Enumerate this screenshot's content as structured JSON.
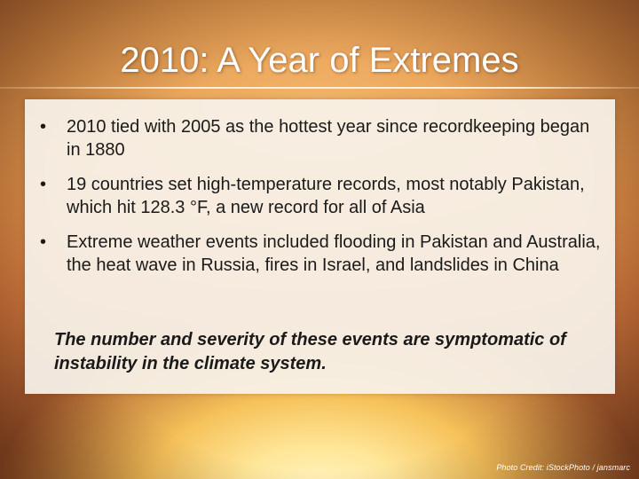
{
  "slide": {
    "title": "2010: A Year of Extremes",
    "bullets": [
      {
        "text": "2010 tied with 2005 as the hottest year since recordkeeping began in 1880"
      },
      {
        "text": "19 countries set high-temperature records, most notably Pakistan, which hit 128.3 °F, a new record for all of Asia"
      },
      {
        "text": "Extreme weather events included flooding in Pakistan and Australia, the heat wave in Russia, fires in Israel, and landslides in China"
      }
    ],
    "bullet_symbol": "•",
    "emphasis": "The number and severity of these events are symptomatic of instability in the climate system.",
    "photo_credit": "Photo Credit: iStockPhoto / jansmarc"
  },
  "colors": {
    "title_text": "#ffffff",
    "body_text": "#1a1a1a",
    "panel_background": "#f7f2ea",
    "sunset_orange": "#e59a4e",
    "sun_yellow": "#fff6c8"
  }
}
